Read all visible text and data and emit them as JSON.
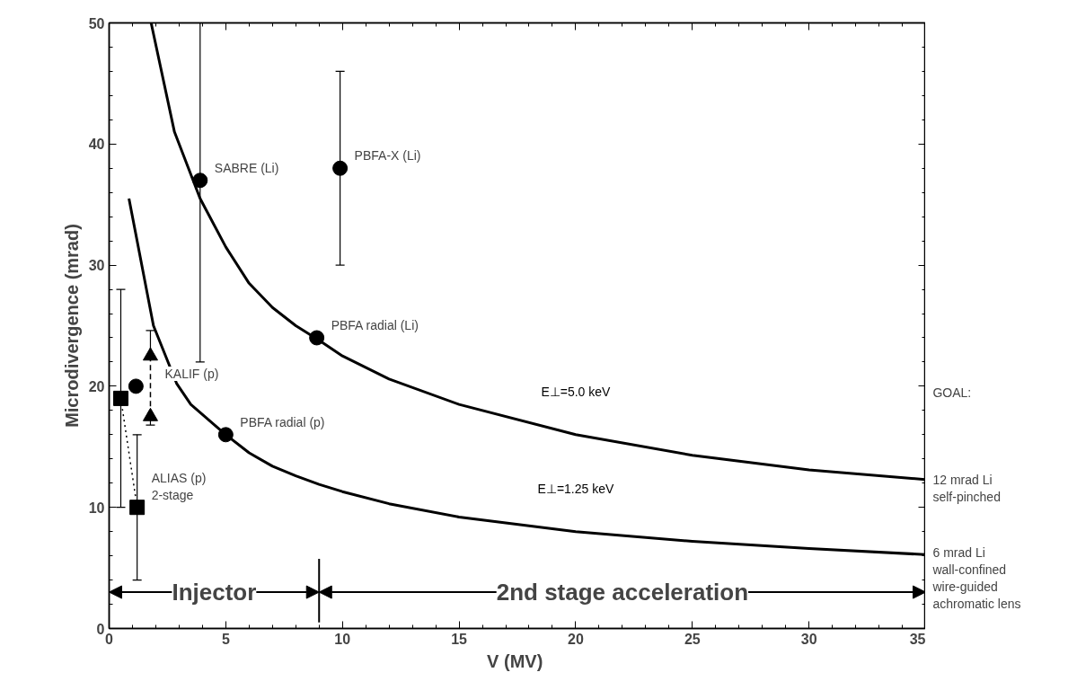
{
  "chart_data": {
    "type": "scatter",
    "xlabel": "V  (MV)",
    "ylabel": "Microdivergence (mrad)",
    "xlim": [
      0,
      35
    ],
    "ylim": [
      0,
      50
    ],
    "xticks": [
      0,
      5,
      10,
      15,
      20,
      25,
      30,
      35
    ],
    "yticks": [
      0,
      10,
      20,
      30,
      40,
      50
    ],
    "grid": false,
    "series": [
      {
        "type": "line",
        "name": "E⊥=5.0 keV",
        "color": "#000000",
        "line_style": "solid",
        "x": [
          1.8,
          2.8,
          3.9,
          5,
          6,
          7,
          8,
          9,
          10,
          12,
          15,
          20,
          25,
          30,
          35
        ],
        "values": [
          50,
          41,
          35.5,
          31.5,
          28.5,
          26.5,
          25,
          23.8,
          22.5,
          20.6,
          18.5,
          16,
          14.3,
          13.1,
          12.3
        ]
      },
      {
        "type": "line",
        "name": "E⊥=1.25 keV",
        "color": "#000000",
        "line_style": "solid",
        "x": [
          0.85,
          1.9,
          2.9,
          3.5,
          5,
          6,
          7,
          8,
          9,
          10,
          12,
          15,
          20,
          25,
          30,
          35
        ],
        "values": [
          35.5,
          25,
          20.2,
          18.5,
          16,
          14.5,
          13.4,
          12.6,
          11.9,
          11.3,
          10.3,
          9.2,
          8,
          7.2,
          6.6,
          6.1
        ]
      },
      {
        "type": "line",
        "color": "#000000",
        "line_style": "dotted",
        "x": [
          0.5,
          1.2
        ],
        "values": [
          19,
          10
        ]
      },
      {
        "type": "line",
        "color": "#000000",
        "line_style": "dashed",
        "x": [
          1.77,
          1.77
        ],
        "values": [
          22.5,
          17.5
        ]
      },
      {
        "color": "#000000",
        "marker": "circle",
        "x": [
          3.9,
          9.9,
          8.9,
          5,
          1.15
        ],
        "values": [
          37,
          38,
          24,
          16,
          20
        ],
        "errors": [
          [
            22,
            50
          ],
          [
            30,
            46
          ],
          null,
          null,
          null
        ]
      },
      {
        "color": "#000000",
        "marker": "square",
        "x": [
          0.5,
          1.2
        ],
        "values": [
          19,
          10
        ],
        "errors": [
          [
            10,
            28
          ],
          [
            4,
            16
          ]
        ]
      },
      {
        "color": "#000000",
        "marker": "triangle",
        "x": [
          1.77,
          1.77
        ],
        "values": [
          22.5,
          17.5
        ],
        "errors": [
          [
            22.5,
            24.6
          ],
          [
            16.8,
            17.5
          ]
        ]
      }
    ],
    "annotations": [
      {
        "text": "SABRE (Li)",
        "x": 3.9,
        "y": 37
      },
      {
        "text": "PBFA-X (Li)",
        "x": 9.9,
        "y": 38
      },
      {
        "text": "PBFA radial (Li)",
        "x": 8.9,
        "y": 24
      },
      {
        "text": "PBFA radial (p)",
        "x": 5,
        "y": 16
      },
      {
        "text": "KALIF (p)",
        "x": 1.77,
        "y": 20
      },
      {
        "text": "ALIAS (p)\n2-stage",
        "x": 1.2,
        "y": 10
      },
      "Injector",
      "2nd stage acceleration",
      "GOAL:",
      {
        "text": "12 mrad Li\nself-pinched",
        "x": 35,
        "y": 12
      },
      {
        "text": "6 mrad Li\nwall-confined\nwire-guided\nachromatic lens",
        "x": 35,
        "y": 6
      }
    ],
    "ref_lines": [
      {
        "axis": "x",
        "value": 9,
        "color": "#000000"
      }
    ]
  }
}
